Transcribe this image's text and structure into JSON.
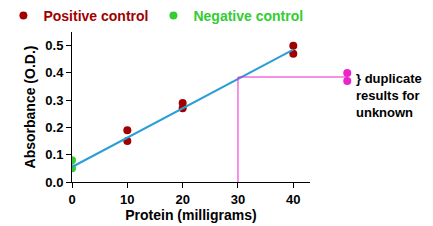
{
  "chart_data": {
    "type": "scatter",
    "xlabel": "Protein (milligrams)",
    "ylabel": "Absorbance (O.D.)",
    "xlim": [
      0,
      43
    ],
    "ylim": [
      0,
      0.55
    ],
    "xticks": [
      0,
      10,
      20,
      30,
      40
    ],
    "yticks": [
      {
        "value": 0,
        "label": "0.0"
      },
      0.1,
      0.2,
      0.3,
      0.4,
      0.5
    ],
    "grid": false,
    "legend": "top",
    "series": [
      {
        "name": "Positive control",
        "color": "#a00000",
        "marker": "circle",
        "x": [
          10,
          10,
          20,
          20,
          40,
          40
        ],
        "values": [
          0.19,
          0.15,
          0.29,
          0.27,
          0.5,
          0.47
        ]
      },
      {
        "name": "Negative control",
        "color": "#33cc33",
        "marker": "circle",
        "x": [
          0,
          0
        ],
        "values": [
          0.08,
          0.05
        ]
      },
      {
        "type": "line",
        "color": "#2a9fd6",
        "x": [
          0,
          40
        ],
        "values": [
          0.055,
          0.485
        ]
      },
      {
        "color": "#ee22cc",
        "marker": "circle",
        "values": [
          0.4,
          0.37
        ]
      }
    ],
    "reading": {
      "x": 30,
      "y": 0.385
    },
    "annotations": [
      "} duplicate results for unknown"
    ]
  }
}
